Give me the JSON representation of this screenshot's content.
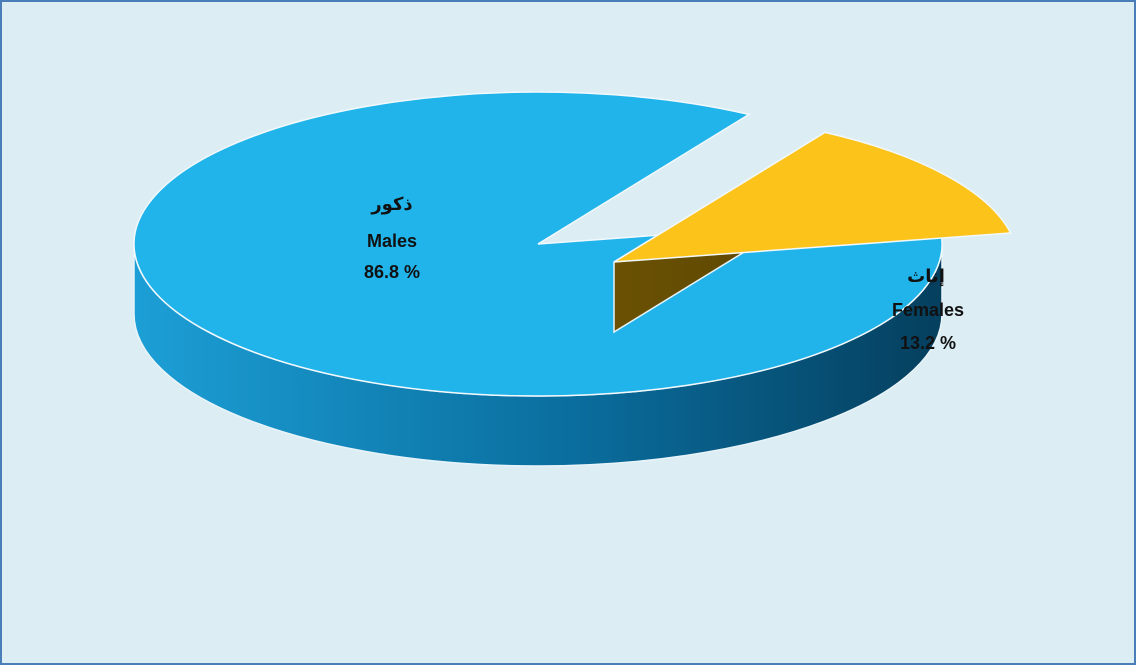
{
  "chart_data": {
    "type": "pie",
    "slices": [
      {
        "label_ar": "ذكور",
        "label_en": "Males",
        "value": 86.8,
        "value_text": "86.8 %",
        "color": "#21b4ea"
      },
      {
        "label_ar": "إناث",
        "label_en": "Females",
        "value": 13.2,
        "value_text": "13.2 %",
        "color": "#fcc31a"
      }
    ],
    "style": "3d-exploded"
  }
}
